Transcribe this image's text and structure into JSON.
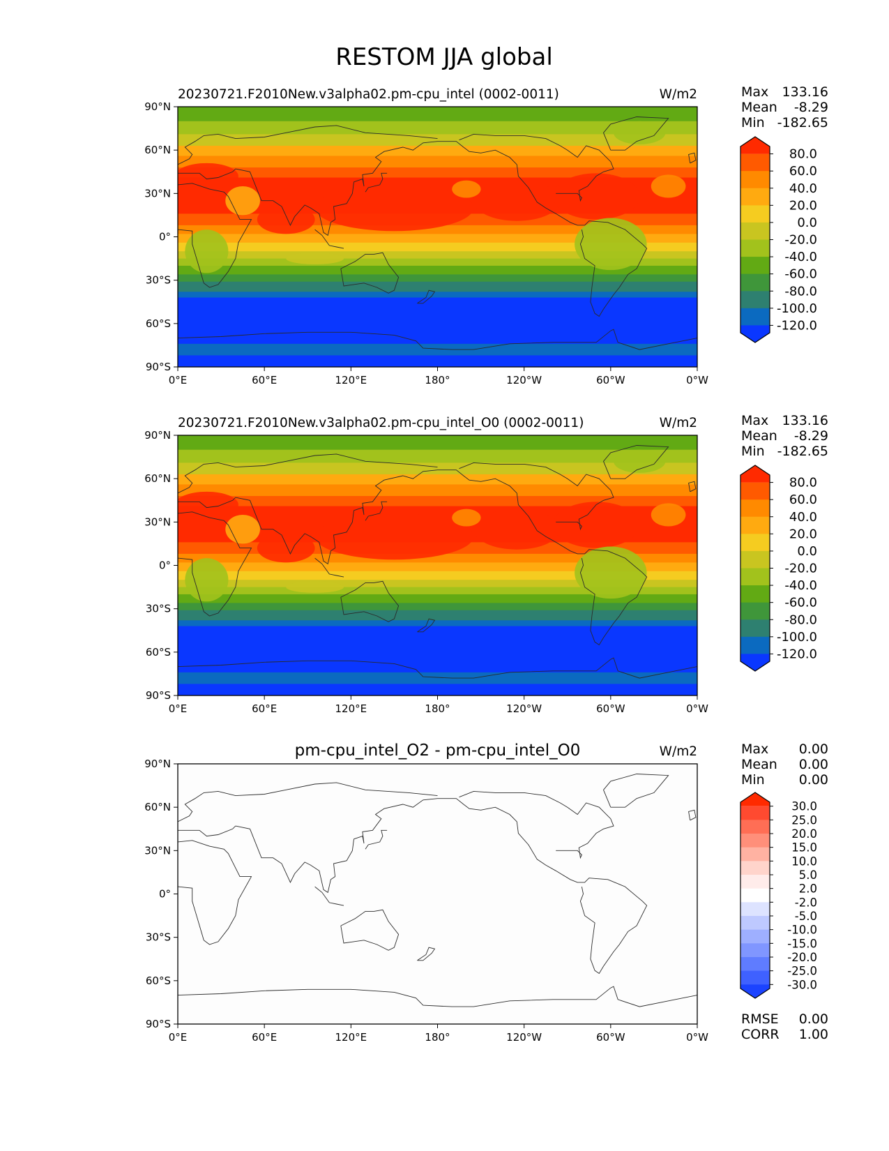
{
  "figure_title": "RESTOM JJA global",
  "colors": {
    "lw": "#2a2a2a",
    "zero_fill": "#fdfdfd"
  },
  "chart_data": [
    {
      "type": "heatmap",
      "title": "20230721.F2010New.v3alpha02.pm-cpu_intel (0002-0011)",
      "units": "W/m2",
      "xlabel": "",
      "ylabel": "",
      "xlim": [
        0,
        360
      ],
      "ylim": [
        -90,
        90
      ],
      "x_ticks": [
        "0°E",
        "60°E",
        "120°E",
        "180°",
        "120°W",
        "60°W",
        "0°W"
      ],
      "y_ticks": [
        "90°N",
        "60°N",
        "30°N",
        "0°",
        "30°S",
        "60°S",
        "90°S"
      ],
      "stats": [
        {
          "label": "Max",
          "value": "133.16"
        },
        {
          "label": "Mean",
          "value": "-8.29"
        },
        {
          "label": "Min",
          "value": "-182.65"
        }
      ],
      "colorbar": {
        "labels": [
          "80.0",
          "60.0",
          "40.0",
          "20.0",
          "0.0",
          "-20.0",
          "-40.0",
          "-60.0",
          "-80.0",
          "-100.0",
          "-120.0"
        ],
        "colors": [
          "#ff2a00",
          "#ff5a00",
          "#ff8a00",
          "#ffaa10",
          "#f5cc20",
          "#c9c520",
          "#a2c21c",
          "#62aa14",
          "#3f963a",
          "#2e8070",
          "#0b6ac0",
          "#0a37ff"
        ]
      }
    },
    {
      "type": "heatmap",
      "title": "20230721.F2010New.v3alpha02.pm-cpu_intel_O0 (0002-0011)",
      "units": "W/m2",
      "xlabel": "",
      "ylabel": "",
      "xlim": [
        0,
        360
      ],
      "ylim": [
        -90,
        90
      ],
      "x_ticks": [
        "0°E",
        "60°E",
        "120°E",
        "180°",
        "120°W",
        "60°W",
        "0°W"
      ],
      "y_ticks": [
        "90°N",
        "60°N",
        "30°N",
        "0°",
        "30°S",
        "60°S",
        "90°S"
      ],
      "stats": [
        {
          "label": "Max",
          "value": "133.16"
        },
        {
          "label": "Mean",
          "value": "-8.29"
        },
        {
          "label": "Min",
          "value": "-182.65"
        }
      ],
      "colorbar": {
        "labels": [
          "80.0",
          "60.0",
          "40.0",
          "20.0",
          "0.0",
          "-20.0",
          "-40.0",
          "-60.0",
          "-80.0",
          "-100.0",
          "-120.0"
        ],
        "colors": [
          "#ff2a00",
          "#ff5a00",
          "#ff8a00",
          "#ffaa10",
          "#f5cc20",
          "#c9c520",
          "#a2c21c",
          "#62aa14",
          "#3f963a",
          "#2e8070",
          "#0b6ac0",
          "#0a37ff"
        ]
      }
    },
    {
      "type": "heatmap",
      "title": "pm-cpu_intel_O2 - pm-cpu_intel_O0",
      "units": "W/m2",
      "xlabel": "",
      "ylabel": "",
      "xlim": [
        0,
        360
      ],
      "ylim": [
        -90,
        90
      ],
      "x_ticks": [
        "0°E",
        "60°E",
        "120°E",
        "180°",
        "120°W",
        "60°W",
        "0°W"
      ],
      "y_ticks": [
        "90°N",
        "60°N",
        "30°N",
        "0°",
        "30°S",
        "60°S",
        "90°S"
      ],
      "stats": [
        {
          "label": "Max",
          "value": "0.00"
        },
        {
          "label": "Mean",
          "value": "0.00"
        },
        {
          "label": "Min",
          "value": "0.00"
        }
      ],
      "footer_stats": [
        {
          "label": "RMSE",
          "value": "0.00"
        },
        {
          "label": "CORR",
          "value": "1.00"
        }
      ],
      "colorbar": {
        "labels": [
          "30.0",
          "25.0",
          "20.0",
          "15.0",
          "10.0",
          "5.0",
          "2.0",
          "-2.0",
          "-5.0",
          "-10.0",
          "-15.0",
          "-20.0",
          "-25.0",
          "-30.0"
        ],
        "colors": [
          "#ff2a00",
          "#ff4a30",
          "#ff6e55",
          "#ff8f7a",
          "#ffb2a2",
          "#ffd4cb",
          "#ffecea",
          "#ffffff",
          "#dde3ff",
          "#bec9ff",
          "#9eafff",
          "#8096ff",
          "#5f7cff",
          "#3f61ff",
          "#1b43ff"
        ]
      }
    }
  ]
}
